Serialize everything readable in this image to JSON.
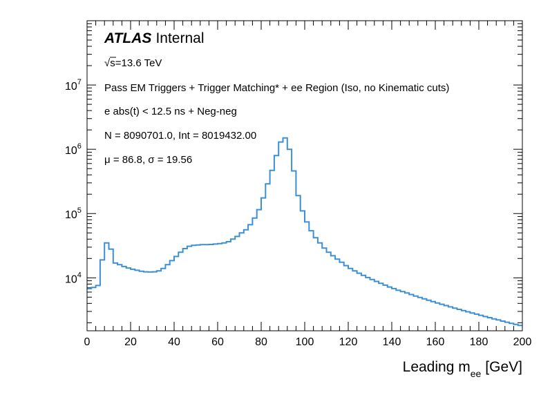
{
  "chart_data": {
    "type": "histogram",
    "series_color": "#3a8fd6",
    "x_axis": {
      "label_prefix": "Leading m",
      "label_sub": "ee",
      "label_suffix": "[GeV]",
      "range": [
        0,
        200
      ],
      "ticks": [
        "0",
        "20",
        "40",
        "60",
        "80",
        "100",
        "120",
        "140",
        "160",
        "180",
        "200"
      ]
    },
    "y_axis": {
      "scale": "log",
      "range": [
        1500,
        100000000
      ],
      "ticks": [
        {
          "value": 10000,
          "base": "10",
          "exp": "4"
        },
        {
          "value": 100000,
          "base": "10",
          "exp": "5"
        },
        {
          "value": 1000000,
          "base": "10",
          "exp": "6"
        },
        {
          "value": 10000000,
          "base": "10",
          "exp": "7"
        }
      ]
    },
    "atlas_label": "ATLAS",
    "atlas_sublabel": "Internal",
    "annotations": {
      "energy_root": "√",
      "energy_text": "s=13.6 TeV",
      "selection": "Pass EM Triggers + Trigger Matching* + ee Region (Iso, no Kinematic cuts)",
      "timing": "e abs(t) < 12.5 ns + Neg-neg",
      "counts": "N = 8090701.0, Int  = 8019432.00",
      "mu_sym": "μ",
      "mu_val": " = 86.8, ",
      "sigma_sym": "σ",
      "sigma_val": " = 19.56"
    },
    "bin_width": 2,
    "bin_edges_start": 0,
    "values": [
      6800,
      7100,
      7600,
      19000,
      35000,
      28000,
      17000,
      16000,
      15000,
      14200,
      13600,
      13100,
      12700,
      12400,
      12300,
      12400,
      12800,
      14000,
      16000,
      18500,
      21500,
      25000,
      28500,
      31000,
      32000,
      32500,
      32800,
      32800,
      33000,
      33500,
      34000,
      35000,
      36500,
      40000,
      44000,
      50000,
      56000,
      67000,
      85000,
      115000,
      175000,
      290000,
      470000,
      800000,
      1300000,
      1500000,
      1000000,
      460000,
      190000,
      110000,
      74000,
      54000,
      42000,
      35000,
      29000,
      25000,
      22000,
      19500,
      17500,
      15500,
      14000,
      12800,
      11800,
      10900,
      10100,
      9400,
      8800,
      8200,
      7700,
      7200,
      6800,
      6400,
      6100,
      5800,
      5500,
      5200,
      4950,
      4700,
      4480,
      4260,
      4060,
      3880,
      3700,
      3530,
      3380,
      3230,
      3090,
      2960,
      2840,
      2720,
      2610,
      2500,
      2400,
      2300,
      2210,
      2120,
      2040,
      1960,
      1890,
      1820
    ]
  }
}
